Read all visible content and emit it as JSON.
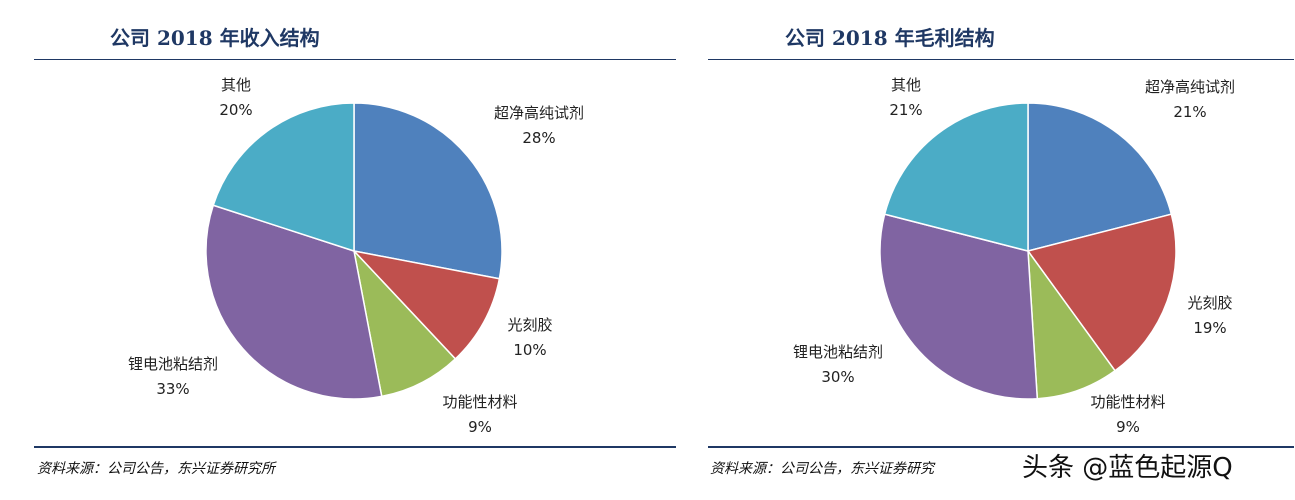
{
  "chart_data": [
    {
      "type": "pie",
      "title": "公司 2018 年收入结构",
      "categories": [
        "超净高纯试剂",
        "光刻胶",
        "功能性材料",
        "锂电池粘结剂",
        "其他"
      ],
      "values": [
        28,
        10,
        9,
        33,
        20
      ],
      "value_labels": [
        "28%",
        "10%",
        "9%",
        "33%",
        "20%"
      ],
      "colors": [
        "#4f81bd",
        "#c0504d",
        "#9bbb59",
        "#8064a2",
        "#4bacc6"
      ],
      "legend": "none",
      "source": "资料来源：公司公告，东兴证券研究所"
    },
    {
      "type": "pie",
      "title": "公司 2018 年毛利结构",
      "categories": [
        "超净高纯试剂",
        "光刻胶",
        "功能性材料",
        "锂电池粘结剂",
        "其他"
      ],
      "values": [
        21,
        19,
        9,
        30,
        21
      ],
      "value_labels": [
        "21%",
        "19%",
        "9%",
        "30%",
        "21%"
      ],
      "colors": [
        "#4f81bd",
        "#c0504d",
        "#9bbb59",
        "#8064a2",
        "#4bacc6"
      ],
      "legend": "none",
      "source": "资料来源：公司公告，东兴证券研究"
    }
  ],
  "watermark": "头条 @蓝色起源Q"
}
